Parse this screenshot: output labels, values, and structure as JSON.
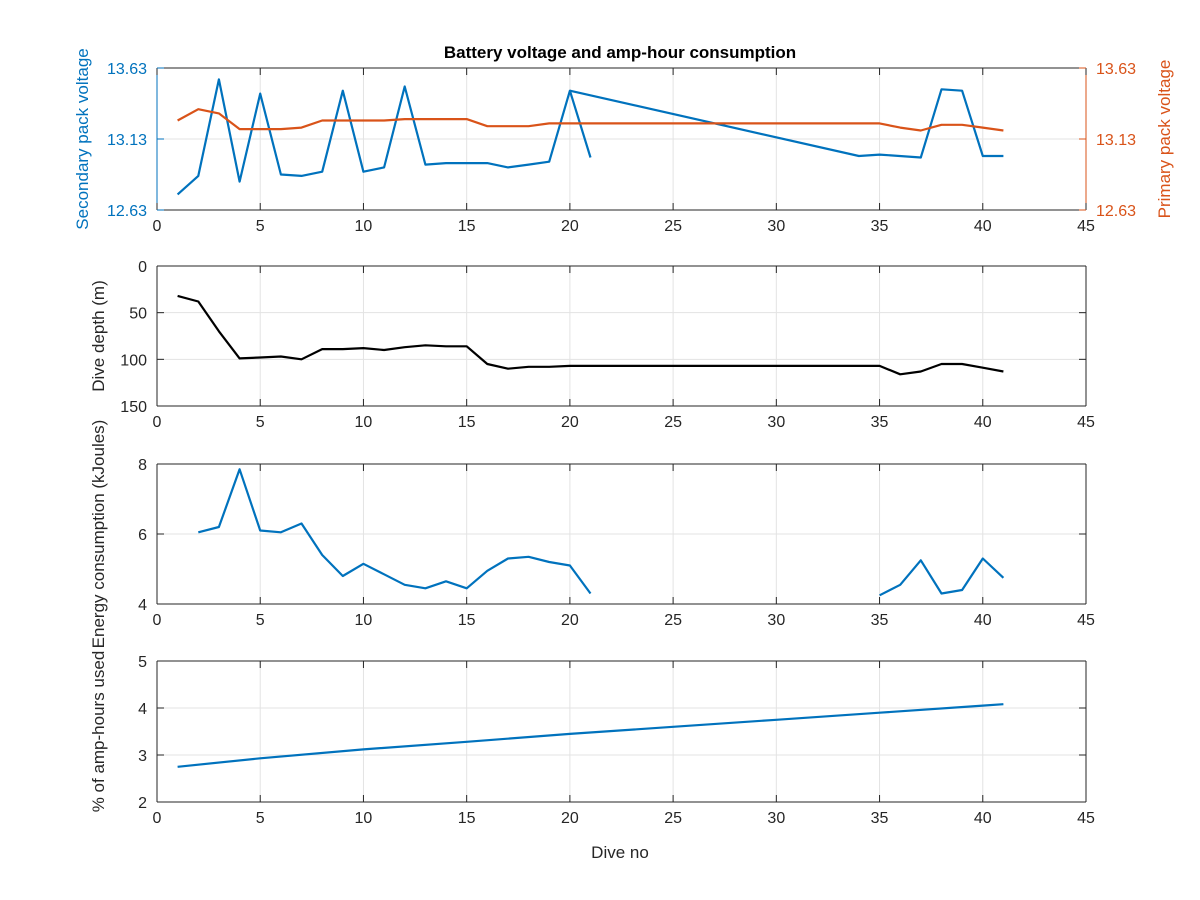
{
  "figure": {
    "title": "Battery voltage and amp-hour consumption",
    "xlabel": "Dive no"
  },
  "colors": {
    "blue": "#0072BD",
    "orange": "#D95319",
    "black": "#000000",
    "grid": "#e3e3e3",
    "axis": "#262626"
  },
  "chart_data": [
    {
      "type": "line",
      "title": "Battery voltage and amp-hour consumption",
      "xlabel": "",
      "ylabel": "Secondary pack voltage",
      "y2label": "Primary pack voltage",
      "xlim": [
        0,
        45
      ],
      "ylim": [
        12.63,
        13.63
      ],
      "y2lim": [
        12.63,
        13.63
      ],
      "xticks": [
        "0",
        "5",
        "10",
        "15",
        "20",
        "25",
        "30",
        "35",
        "40",
        "45"
      ],
      "yticks": [
        "12.63",
        "13.13",
        "13.63"
      ],
      "y2ticks": [
        "12.63",
        "13.13",
        "13.63"
      ],
      "grid": true,
      "series": [
        {
          "axis": "left",
          "color": "#0072BD",
          "x": [
            1,
            2,
            3,
            4,
            5,
            6,
            7,
            8,
            9,
            10,
            11,
            12,
            13,
            14,
            15,
            16,
            17,
            18,
            19,
            20,
            21
          ],
          "y": [
            12.74,
            12.87,
            13.55,
            12.83,
            13.45,
            12.88,
            12.87,
            12.9,
            13.47,
            12.9,
            12.93,
            13.5,
            12.95,
            12.96,
            12.96,
            12.96,
            12.93,
            12.95,
            12.97,
            13.47,
            13.0
          ]
        },
        {
          "axis": "left",
          "color": "#0072BD",
          "x": [
            20,
            34,
            35,
            37,
            38,
            39,
            40,
            41
          ],
          "y": [
            13.47,
            13.01,
            13.02,
            13.0,
            13.48,
            13.47,
            13.01,
            13.01
          ]
        },
        {
          "axis": "right",
          "color": "#D95319",
          "x": [
            1,
            2,
            3,
            4,
            5,
            6,
            7,
            8,
            9,
            10,
            11,
            12,
            13,
            14,
            15,
            16,
            17,
            18,
            19,
            20,
            25,
            30,
            35,
            36,
            37,
            38,
            39,
            40,
            41
          ],
          "y": [
            13.26,
            13.34,
            13.31,
            13.2,
            13.2,
            13.2,
            13.21,
            13.26,
            13.26,
            13.26,
            13.26,
            13.27,
            13.27,
            13.27,
            13.27,
            13.22,
            13.22,
            13.22,
            13.24,
            13.24,
            13.24,
            13.24,
            13.24,
            13.21,
            13.19,
            13.23,
            13.23,
            13.21,
            13.19
          ]
        }
      ]
    },
    {
      "type": "line",
      "ylabel": "Dive depth (m)",
      "xlim": [
        0,
        45
      ],
      "ylim": [
        0,
        150
      ],
      "yreverse": true,
      "xticks": [
        "0",
        "5",
        "10",
        "15",
        "20",
        "25",
        "30",
        "35",
        "40",
        "45"
      ],
      "yticks": [
        "0",
        "50",
        "100",
        "150"
      ],
      "grid": true,
      "series": [
        {
          "color": "#000000",
          "x": [
            1,
            2,
            3,
            4,
            5,
            6,
            7,
            8,
            9,
            10,
            11,
            12,
            13,
            14,
            15,
            16,
            17,
            18,
            19,
            20,
            25,
            30,
            35,
            36,
            37,
            38,
            39,
            40,
            41
          ],
          "y": [
            32,
            38,
            70,
            99,
            98,
            97,
            100,
            89,
            89,
            88,
            90,
            87,
            85,
            86,
            86,
            105,
            110,
            108,
            108,
            107,
            107,
            107,
            107,
            116,
            113,
            105,
            105,
            109,
            113
          ]
        }
      ]
    },
    {
      "type": "line",
      "ylabel": "Energy consumption (kJoules)",
      "xlim": [
        0,
        45
      ],
      "ylim": [
        4,
        8
      ],
      "xticks": [
        "0",
        "5",
        "10",
        "15",
        "20",
        "25",
        "30",
        "35",
        "40",
        "45"
      ],
      "yticks": [
        "4",
        "6",
        "8"
      ],
      "grid": true,
      "series": [
        {
          "color": "#0072BD",
          "x": [
            2,
            3,
            4,
            5,
            6,
            7,
            8,
            9,
            10,
            11,
            12,
            13,
            14,
            15,
            16,
            17,
            18,
            19,
            20,
            21
          ],
          "y": [
            6.05,
            6.2,
            7.85,
            6.1,
            6.05,
            6.3,
            5.4,
            4.8,
            5.15,
            4.85,
            4.55,
            4.45,
            4.65,
            4.45,
            4.95,
            5.3,
            5.35,
            5.2,
            5.1,
            4.3
          ]
        },
        {
          "color": "#0072BD",
          "x": [
            35,
            36,
            37,
            38,
            39,
            40,
            41
          ],
          "y": [
            4.25,
            4.55,
            5.25,
            4.3,
            4.4,
            5.3,
            4.75
          ]
        }
      ]
    },
    {
      "type": "line",
      "ylabel": "% of amp-hours used",
      "xlabel": "Dive no",
      "xlim": [
        0,
        45
      ],
      "ylim": [
        2,
        5
      ],
      "xticks": [
        "0",
        "5",
        "10",
        "15",
        "20",
        "25",
        "30",
        "35",
        "40",
        "45"
      ],
      "yticks": [
        "2",
        "3",
        "4",
        "5"
      ],
      "grid": true,
      "series": [
        {
          "color": "#0072BD",
          "x": [
            1,
            5,
            10,
            15,
            20,
            25,
            30,
            35,
            40,
            41
          ],
          "y": [
            2.75,
            2.93,
            3.12,
            3.28,
            3.45,
            3.6,
            3.75,
            3.9,
            4.05,
            4.08
          ]
        }
      ]
    }
  ]
}
